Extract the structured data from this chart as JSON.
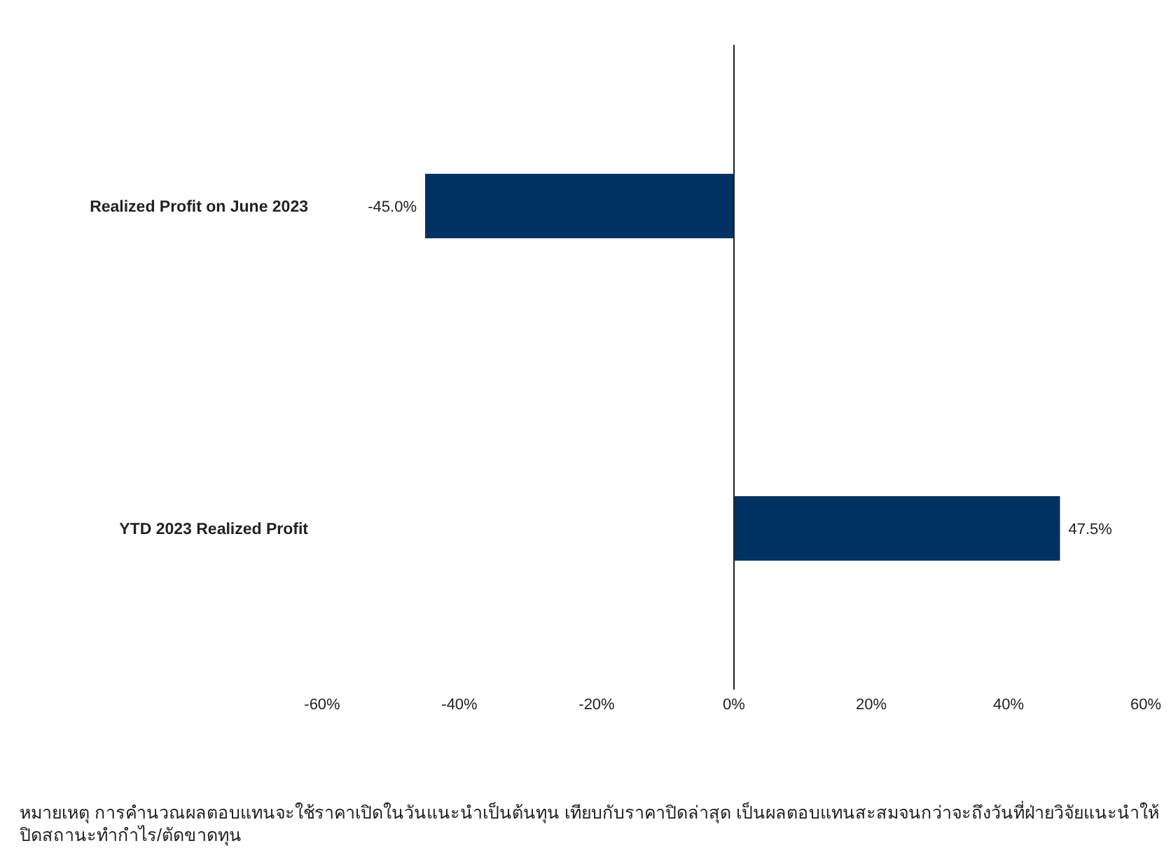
{
  "chart_data": {
    "type": "bar",
    "orientation": "horizontal",
    "categories": [
      "Realized Profit on  June 2023",
      "YTD 2023  Realized Profit"
    ],
    "values": [
      -45.0,
      47.5
    ],
    "value_labels": [
      "-45.0%",
      "47.5%"
    ],
    "color": "#003263",
    "xlim": [
      -60,
      60
    ],
    "xticks": [
      {
        "value": -60,
        "label": "-60%"
      },
      {
        "value": -40,
        "label": "-40%"
      },
      {
        "value": -20,
        "label": "-20%"
      },
      {
        "value": 0,
        "label": "0%"
      },
      {
        "value": 20,
        "label": "20%"
      },
      {
        "value": 40,
        "label": "40%"
      },
      {
        "value": 60,
        "label": "60%"
      }
    ],
    "annotations": [
      "หมายเหตุ การคำนวณผลตอบแทนจะใช้ราคาเปิดในวันแนะนำเป็นต้นทุน  เทียบกับราคาปิดล่าสุด  เป็นผลตอบแทนสะสมจนกว่าจะถึงวันที่ฝ่ายวิจัยแนะนำให้ปิดสถานะทำกำไร/ตัดขาดทุน"
    ]
  }
}
